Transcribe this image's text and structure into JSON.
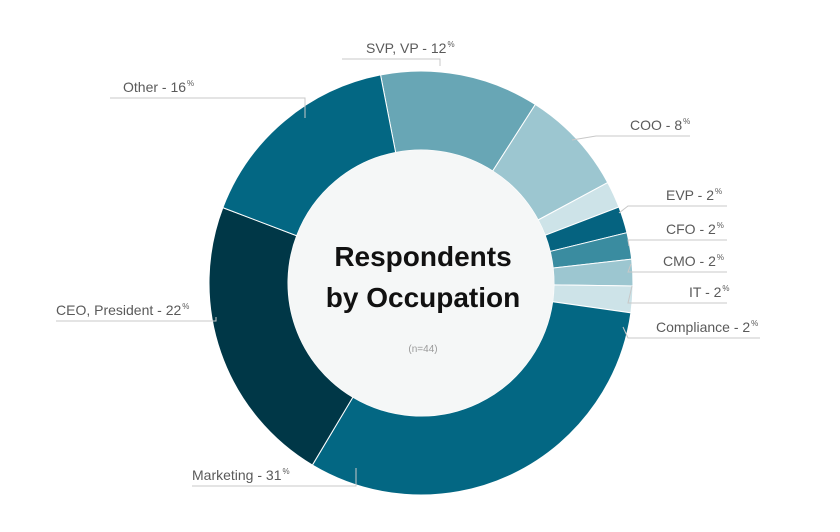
{
  "chart_data": {
    "type": "pie",
    "variant": "donut",
    "title_lines": [
      "Respondents",
      "by Occupation"
    ],
    "subtitle": "(n=44)",
    "label_separator": " - ",
    "percent_symbol": "%",
    "slices": [
      {
        "label": "SVP, VP",
        "value": 12,
        "color": "#68a6b5"
      },
      {
        "label": "COO",
        "value": 8,
        "color": "#9cc6d0"
      },
      {
        "label": "EVP",
        "value": 2,
        "color": "#cde3e8"
      },
      {
        "label": "CFO",
        "value": 2,
        "color": "#056380"
      },
      {
        "label": "CMO",
        "value": 2,
        "color": "#3a8ca0"
      },
      {
        "label": "IT",
        "value": 2,
        "color": "#9cc6d0"
      },
      {
        "label": "Compliance",
        "value": 2,
        "color": "#cde3e8"
      },
      {
        "label": "Marketing",
        "value": 31,
        "color": "#036783"
      },
      {
        "label": "CEO, President",
        "value": 22,
        "color": "#003747"
      },
      {
        "label": "Other",
        "value": 16,
        "color": "#036783"
      }
    ],
    "colors": {
      "leader_line": "#c8c8c8",
      "center_fill": "#f5f7f7",
      "label_text": "#5a5a5a"
    }
  }
}
